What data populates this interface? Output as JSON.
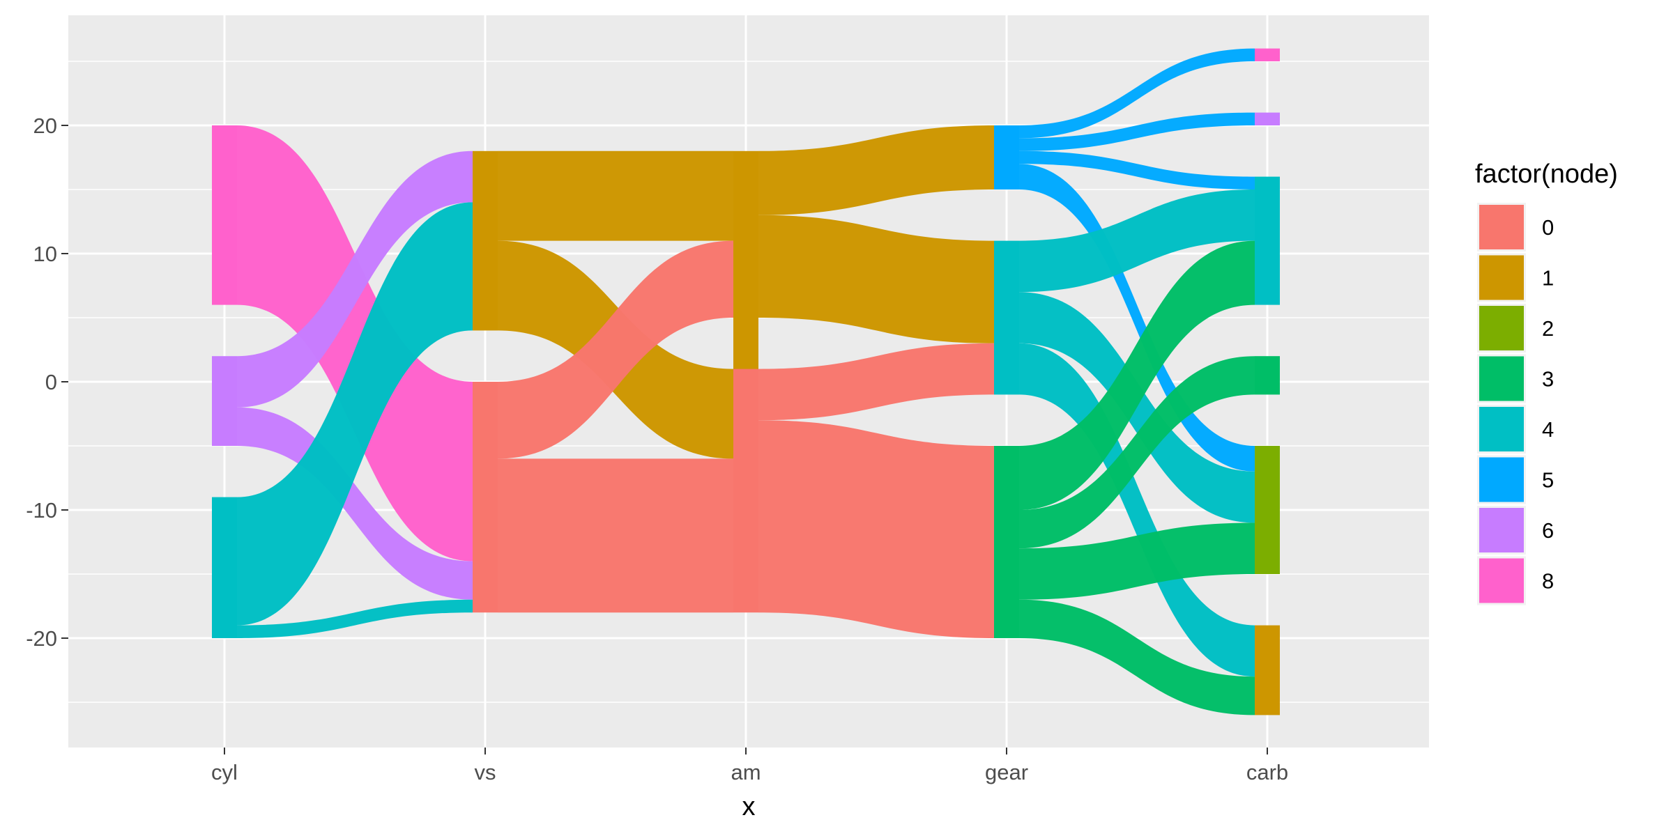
{
  "chart_data": {
    "type": "alluvial",
    "xlabel": "x",
    "ylabel": "",
    "categories": [
      "cyl",
      "vs",
      "am",
      "gear",
      "carb"
    ],
    "ylim": [
      -28.5,
      28.5
    ],
    "y_ticks": [
      -20,
      -10,
      0,
      10,
      20
    ],
    "grid": true,
    "legend": {
      "title": "factor(node)",
      "position": "right",
      "entries": [
        {
          "label": "0",
          "color": "#F8766D"
        },
        {
          "label": "1",
          "color": "#CD9600"
        },
        {
          "label": "2",
          "color": "#7CAE00"
        },
        {
          "label": "3",
          "color": "#00BE67"
        },
        {
          "label": "4",
          "color": "#00BFC4"
        },
        {
          "label": "5",
          "color": "#00A9FF"
        },
        {
          "label": "6",
          "color": "#C77CFF"
        },
        {
          "label": "8",
          "color": "#FF61CC"
        }
      ]
    },
    "nodes": [
      {
        "x": "cyl",
        "node": "8",
        "y0": 6,
        "y1": 20
      },
      {
        "x": "cyl",
        "node": "6",
        "y0": -5,
        "y1": 2
      },
      {
        "x": "cyl",
        "node": "4",
        "y0": -20,
        "y1": -9
      },
      {
        "x": "vs",
        "node": "1",
        "y0": 4,
        "y1": 18
      },
      {
        "x": "vs",
        "node": "0",
        "y0": -18,
        "y1": 0
      },
      {
        "x": "am",
        "node": "1",
        "y0": -6,
        "y1": 18
      },
      {
        "x": "am",
        "node": "0",
        "y0": -18,
        "y1": 1
      },
      {
        "x": "gear",
        "node": "5",
        "y0": 15,
        "y1": 20
      },
      {
        "x": "gear",
        "node": "4",
        "y0": -1,
        "y1": 11
      },
      {
        "x": "gear",
        "node": "3",
        "y0": -20,
        "y1": -5
      },
      {
        "x": "carb",
        "node": "8",
        "y0": 25,
        "y1": 26
      },
      {
        "x": "carb",
        "node": "6",
        "y0": 20,
        "y1": 21
      },
      {
        "x": "carb",
        "node": "4",
        "y0": 6,
        "y1": 16
      },
      {
        "x": "carb",
        "node": "3",
        "y0": -1,
        "y1": 2
      },
      {
        "x": "carb",
        "node": "2",
        "y0": -15,
        "y1": -5
      },
      {
        "x": "carb",
        "node": "1",
        "y0": -26,
        "y1": -19
      }
    ],
    "flows": [
      {
        "from": "cyl",
        "to": "vs",
        "node": "8",
        "y0a": 6,
        "y1a": 20,
        "y0b": -14,
        "y1b": 0
      },
      {
        "from": "cyl",
        "to": "vs",
        "node": "6",
        "y0a": -2,
        "y1a": 2,
        "y0b": 14,
        "y1b": 18
      },
      {
        "from": "cyl",
        "to": "vs",
        "node": "6",
        "y0a": -5,
        "y1a": -2,
        "y0b": -17,
        "y1b": -14
      },
      {
        "from": "cyl",
        "to": "vs",
        "node": "4",
        "y0a": -19,
        "y1a": -9,
        "y0b": 4,
        "y1b": 14
      },
      {
        "from": "cyl",
        "to": "vs",
        "node": "4",
        "y0a": -20,
        "y1a": -19,
        "y0b": -18,
        "y1b": -17
      },
      {
        "from": "vs",
        "to": "am",
        "node": "1",
        "y0a": 11,
        "y1a": 18,
        "y0b": 11,
        "y1b": 18
      },
      {
        "from": "vs",
        "to": "am",
        "node": "1",
        "y0a": 4,
        "y1a": 11,
        "y0b": -6,
        "y1b": 1
      },
      {
        "from": "vs",
        "to": "am",
        "node": "0",
        "y0a": -6,
        "y1a": 0,
        "y0b": 5,
        "y1b": 11
      },
      {
        "from": "vs",
        "to": "am",
        "node": "0",
        "y0a": -18,
        "y1a": -6,
        "y0b": -18,
        "y1b": -6
      },
      {
        "from": "am",
        "to": "gear",
        "node": "1",
        "y0a": 13,
        "y1a": 18,
        "y0b": 15,
        "y1b": 20
      },
      {
        "from": "am",
        "to": "gear",
        "node": "1",
        "y0a": 5,
        "y1a": 13,
        "y0b": 3,
        "y1b": 11
      },
      {
        "from": "am",
        "to": "gear",
        "node": "0",
        "y0a": -3,
        "y1a": 1,
        "y0b": -1,
        "y1b": 3
      },
      {
        "from": "am",
        "to": "gear",
        "node": "0",
        "y0a": -18,
        "y1a": -3,
        "y0b": -20,
        "y1b": -5
      },
      {
        "from": "gear",
        "to": "carb",
        "node": "5",
        "y0a": 19,
        "y1a": 20,
        "y0b": 25,
        "y1b": 26
      },
      {
        "from": "gear",
        "to": "carb",
        "node": "5",
        "y0a": 18,
        "y1a": 19,
        "y0b": 20,
        "y1b": 21
      },
      {
        "from": "gear",
        "to": "carb",
        "node": "5",
        "y0a": 17,
        "y1a": 18,
        "y0b": 15,
        "y1b": 16
      },
      {
        "from": "gear",
        "to": "carb",
        "node": "5",
        "y0a": 15,
        "y1a": 17,
        "y0b": -7,
        "y1b": -5
      },
      {
        "from": "gear",
        "to": "carb",
        "node": "4",
        "y0a": 7,
        "y1a": 11,
        "y0b": 11,
        "y1b": 15
      },
      {
        "from": "gear",
        "to": "carb",
        "node": "4",
        "y0a": 3,
        "y1a": 7,
        "y0b": -11,
        "y1b": -7
      },
      {
        "from": "gear",
        "to": "carb",
        "node": "4",
        "y0a": -1,
        "y1a": 3,
        "y0b": -23,
        "y1b": -19
      },
      {
        "from": "gear",
        "to": "carb",
        "node": "3",
        "y0a": -10,
        "y1a": -5,
        "y0b": 6,
        "y1b": 11
      },
      {
        "from": "gear",
        "to": "carb",
        "node": "3",
        "y0a": -13,
        "y1a": -10,
        "y0b": -1,
        "y1b": 2
      },
      {
        "from": "gear",
        "to": "carb",
        "node": "3",
        "y0a": -17,
        "y1a": -13,
        "y0b": -15,
        "y1b": -11
      },
      {
        "from": "gear",
        "to": "carb",
        "node": "3",
        "y0a": -20,
        "y1a": -17,
        "y0b": -26,
        "y1b": -23
      }
    ]
  }
}
